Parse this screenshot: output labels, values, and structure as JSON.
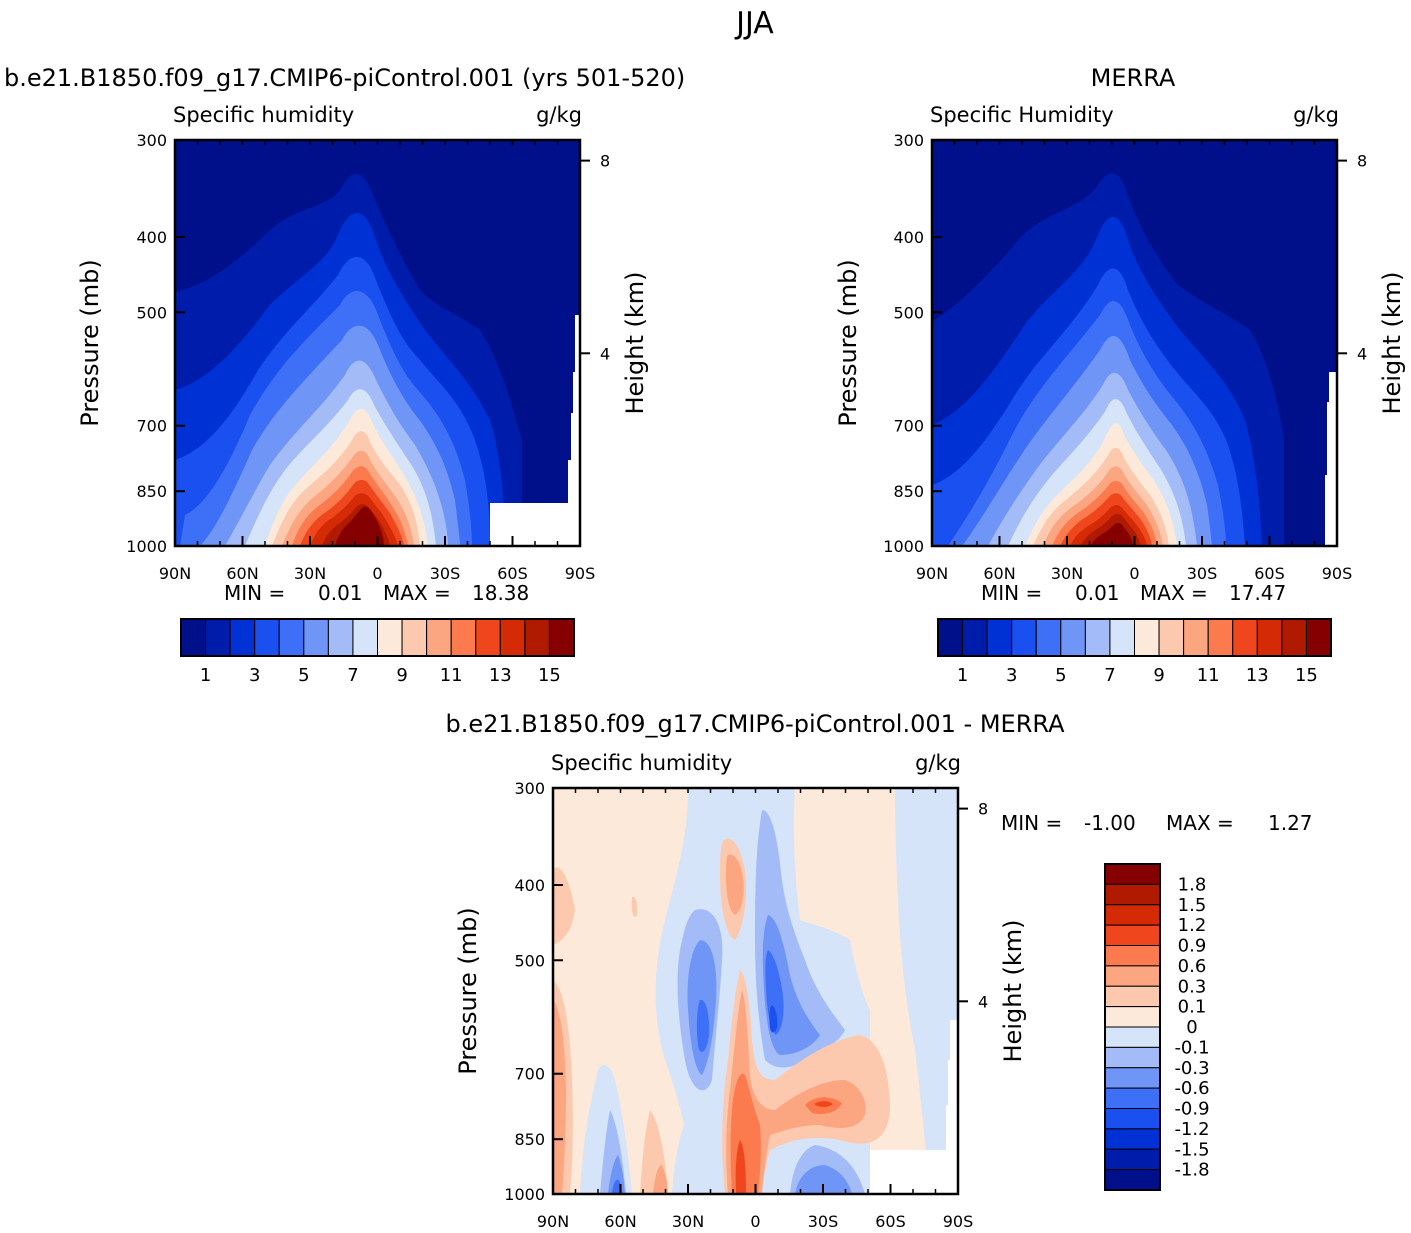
{
  "season": "JJA",
  "chart_data": [
    {
      "type": "heatmap",
      "title": "b.e21.B1850.f09_g17.CMIP6-piControl.001 (yrs 501-520)",
      "subtitle_left": "Specific humidity",
      "subtitle_right": "g/kg",
      "ylabel": "Pressure (mb)",
      "ylabel_right": "Height (km)",
      "x_ticks": [
        "90N",
        "60N",
        "30N",
        "0",
        "30S",
        "60S",
        "90S"
      ],
      "y_ticks": [
        "300",
        "400",
        "500",
        "700",
        "850",
        "1000"
      ],
      "y_right_ticks": [
        "8",
        "4"
      ],
      "stats": {
        "min_label": "MIN =",
        "min": "0.01",
        "max_label": "MAX =",
        "max": "18.38"
      },
      "colorbar": {
        "colors": [
          "#000f8a",
          "#001cab",
          "#0031d4",
          "#1a4ff0",
          "#3d6ff7",
          "#6f95f7",
          "#a3bcf7",
          "#d6e4fa",
          "#fde9da",
          "#fdc9ae",
          "#fca581",
          "#fb7a4e",
          "#f0461e",
          "#d42a05",
          "#b01a00",
          "#850000"
        ],
        "labels": [
          "1",
          "3",
          "5",
          "7",
          "9",
          "11",
          "13",
          "15"
        ]
      },
      "peak_value": 18.38
    },
    {
      "type": "heatmap",
      "title": "MERRA",
      "subtitle_left": "Specific Humidity",
      "subtitle_right": "g/kg",
      "ylabel": "Pressure (mb)",
      "ylabel_right": "Height (km)",
      "x_ticks": [
        "90N",
        "60N",
        "30N",
        "0",
        "30S",
        "60S",
        "90S"
      ],
      "y_ticks": [
        "300",
        "400",
        "500",
        "700",
        "850",
        "1000"
      ],
      "y_right_ticks": [
        "8",
        "4"
      ],
      "stats": {
        "min_label": "MIN =",
        "min": "0.01",
        "max_label": "MAX =",
        "max": "17.47"
      },
      "colorbar": {
        "colors": [
          "#000f8a",
          "#001cab",
          "#0031d4",
          "#1a4ff0",
          "#3d6ff7",
          "#6f95f7",
          "#a3bcf7",
          "#d6e4fa",
          "#fde9da",
          "#fdc9ae",
          "#fca581",
          "#fb7a4e",
          "#f0461e",
          "#d42a05",
          "#b01a00",
          "#850000"
        ],
        "labels": [
          "1",
          "3",
          "5",
          "7",
          "9",
          "11",
          "13",
          "15"
        ]
      },
      "peak_value": 17.47
    },
    {
      "type": "heatmap",
      "title": "b.e21.B1850.f09_g17.CMIP6-piControl.001 - MERRA",
      "subtitle_left": "Specific humidity",
      "subtitle_right": "g/kg",
      "ylabel": "Pressure (mb)",
      "ylabel_right": "Height (km)",
      "x_ticks": [
        "90N",
        "60N",
        "30N",
        "0",
        "30S",
        "60S",
        "90S"
      ],
      "y_ticks": [
        "300",
        "400",
        "500",
        "700",
        "850",
        "1000"
      ],
      "y_right_ticks": [
        "8",
        "4"
      ],
      "stats": {
        "min_label": "MIN =",
        "min": "-1.00",
        "max_label": "MAX =",
        "max": "1.27"
      },
      "colorbar": {
        "colors": [
          "#000f8a",
          "#001cab",
          "#0031d4",
          "#1a4ff0",
          "#3d6ff7",
          "#6f95f7",
          "#a3bcf7",
          "#d6e4fa",
          "#fde9da",
          "#fdc9ae",
          "#fca581",
          "#fb7a4e",
          "#f0461e",
          "#d42a05",
          "#b01a00",
          "#850000"
        ],
        "labels": [
          "1.8",
          "1.5",
          "1.2",
          "0.9",
          "0.6",
          "0.3",
          "0.1",
          "0",
          "-0.1",
          "-0.3",
          "-0.6",
          "-0.9",
          "-1.2",
          "-1.5",
          "-1.8"
        ]
      }
    }
  ]
}
